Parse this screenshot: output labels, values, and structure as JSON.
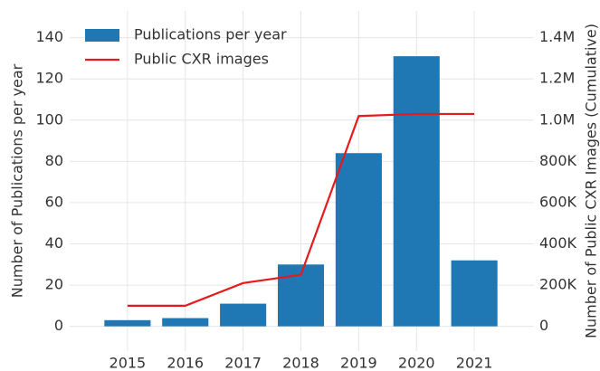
{
  "chart_data": {
    "type": "bar",
    "categories": [
      "2015",
      "2016",
      "2017",
      "2018",
      "2019",
      "2020",
      "2021"
    ],
    "series": [
      {
        "name": "Publications per year",
        "type": "bar",
        "color": "#1f77b4",
        "values": [
          3,
          4,
          11,
          30,
          84,
          131,
          32
        ]
      },
      {
        "name": "Public CXR images",
        "type": "line",
        "axis": "y2",
        "color": "#e41a1c",
        "values": [
          100000,
          100000,
          210000,
          250000,
          1020000,
          1030000,
          1030000
        ]
      }
    ],
    "ylabel": "Number of Publications per year",
    "y2label": "Number of Public CXR Images (Cumulative)",
    "ylim": [
      -12,
      153
    ],
    "yticks": [
      0,
      20,
      40,
      60,
      80,
      100,
      120,
      140
    ],
    "y2lim": [
      -120000,
      1530000
    ],
    "y2ticks": [
      0,
      {
        "value": 200000,
        "label": "200K"
      },
      {
        "value": 400000,
        "label": "400K"
      },
      {
        "value": 600000,
        "label": "600K"
      },
      {
        "value": 800000,
        "label": "800K"
      },
      {
        "value": 1000000,
        "label": "1.0M"
      },
      {
        "value": 1200000,
        "label": "1.2M"
      },
      {
        "value": 1400000,
        "label": "1.4M"
      }
    ],
    "grid": true,
    "legend": "upper left"
  }
}
